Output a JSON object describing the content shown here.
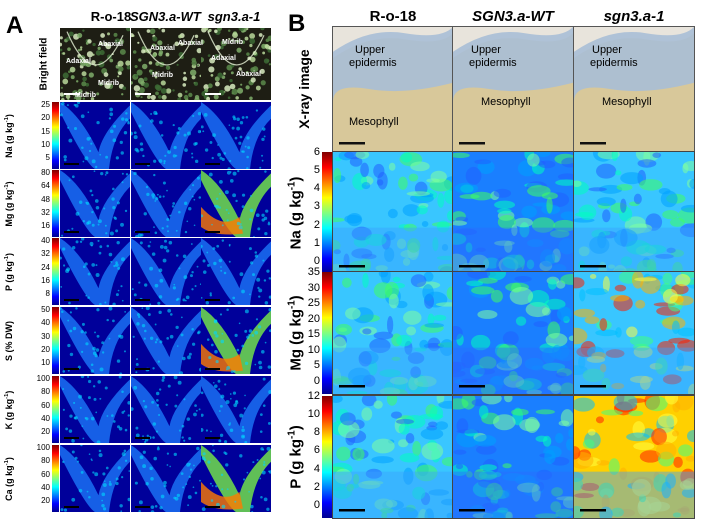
{
  "panelA": {
    "letter": "A",
    "columns": [
      "R-o-18",
      "SGN3.a-WT",
      "sgn3.a-1"
    ],
    "bright_field_label": "Bright field",
    "tissue_labels": {
      "adaxial": "Adaxial",
      "abaxial": "Abaxial",
      "midrib": "Midrib"
    },
    "rows": [
      {
        "label": "Na (g kg",
        "sup": "-1",
        "close": ")",
        "ticks": [
          "25",
          "20",
          "15",
          "10",
          "5"
        ]
      },
      {
        "label": "Mg (g kg",
        "sup": "-1",
        "close": ")",
        "ticks": [
          "80",
          "64",
          "48",
          "32",
          "16"
        ]
      },
      {
        "label": "P (g kg",
        "sup": "-1",
        "close": ")",
        "ticks": [
          "40",
          "32",
          "24",
          "16",
          "8"
        ]
      },
      {
        "label": "S (% DW)",
        "sup": "",
        "close": "",
        "ticks": [
          "50",
          "40",
          "30",
          "20",
          "10"
        ]
      },
      {
        "label": "K (g kg",
        "sup": "-1",
        "close": ")",
        "ticks": [
          "100",
          "80",
          "60",
          "40",
          "20"
        ]
      },
      {
        "label": "Ca (g kg",
        "sup": "-1",
        "close": ")",
        "ticks": [
          "100",
          "80",
          "60",
          "40",
          "20"
        ]
      }
    ]
  },
  "panelB": {
    "letter": "B",
    "columns": [
      "R-o-18",
      "SGN3.a-WT",
      "sgn3.a-1"
    ],
    "xray_label": "X-ray image",
    "region_labels": {
      "upper": "Upper",
      "epidermis": "epidermis",
      "mesophyll": "Mesophyll"
    },
    "rows": [
      {
        "label": "Na (g kg",
        "sup": "-1",
        "close": ")",
        "ticks": [
          "6",
          "5",
          "4",
          "3",
          "2",
          "1",
          "0"
        ]
      },
      {
        "label": "Mg (g kg",
        "sup": "-1",
        "close": ")",
        "ticks": [
          "35",
          "30",
          "25",
          "20",
          "15",
          "10",
          "5",
          "0"
        ]
      },
      {
        "label": "P (g kg",
        "sup": "-1",
        "close": ")",
        "ticks": [
          "12",
          "10",
          "8",
          "6",
          "4",
          "2",
          "0"
        ]
      }
    ]
  },
  "colors": {
    "jet": [
      "#00008f",
      "#0000ff",
      "#0080ff",
      "#00ffff",
      "#80ff80",
      "#ffff00",
      "#ff8000",
      "#ff0000",
      "#800000"
    ],
    "xray_epidermis": "#a9bed6",
    "xray_mesophyll": "#d8c89a",
    "bright_field_bg": "#1e1e14"
  }
}
